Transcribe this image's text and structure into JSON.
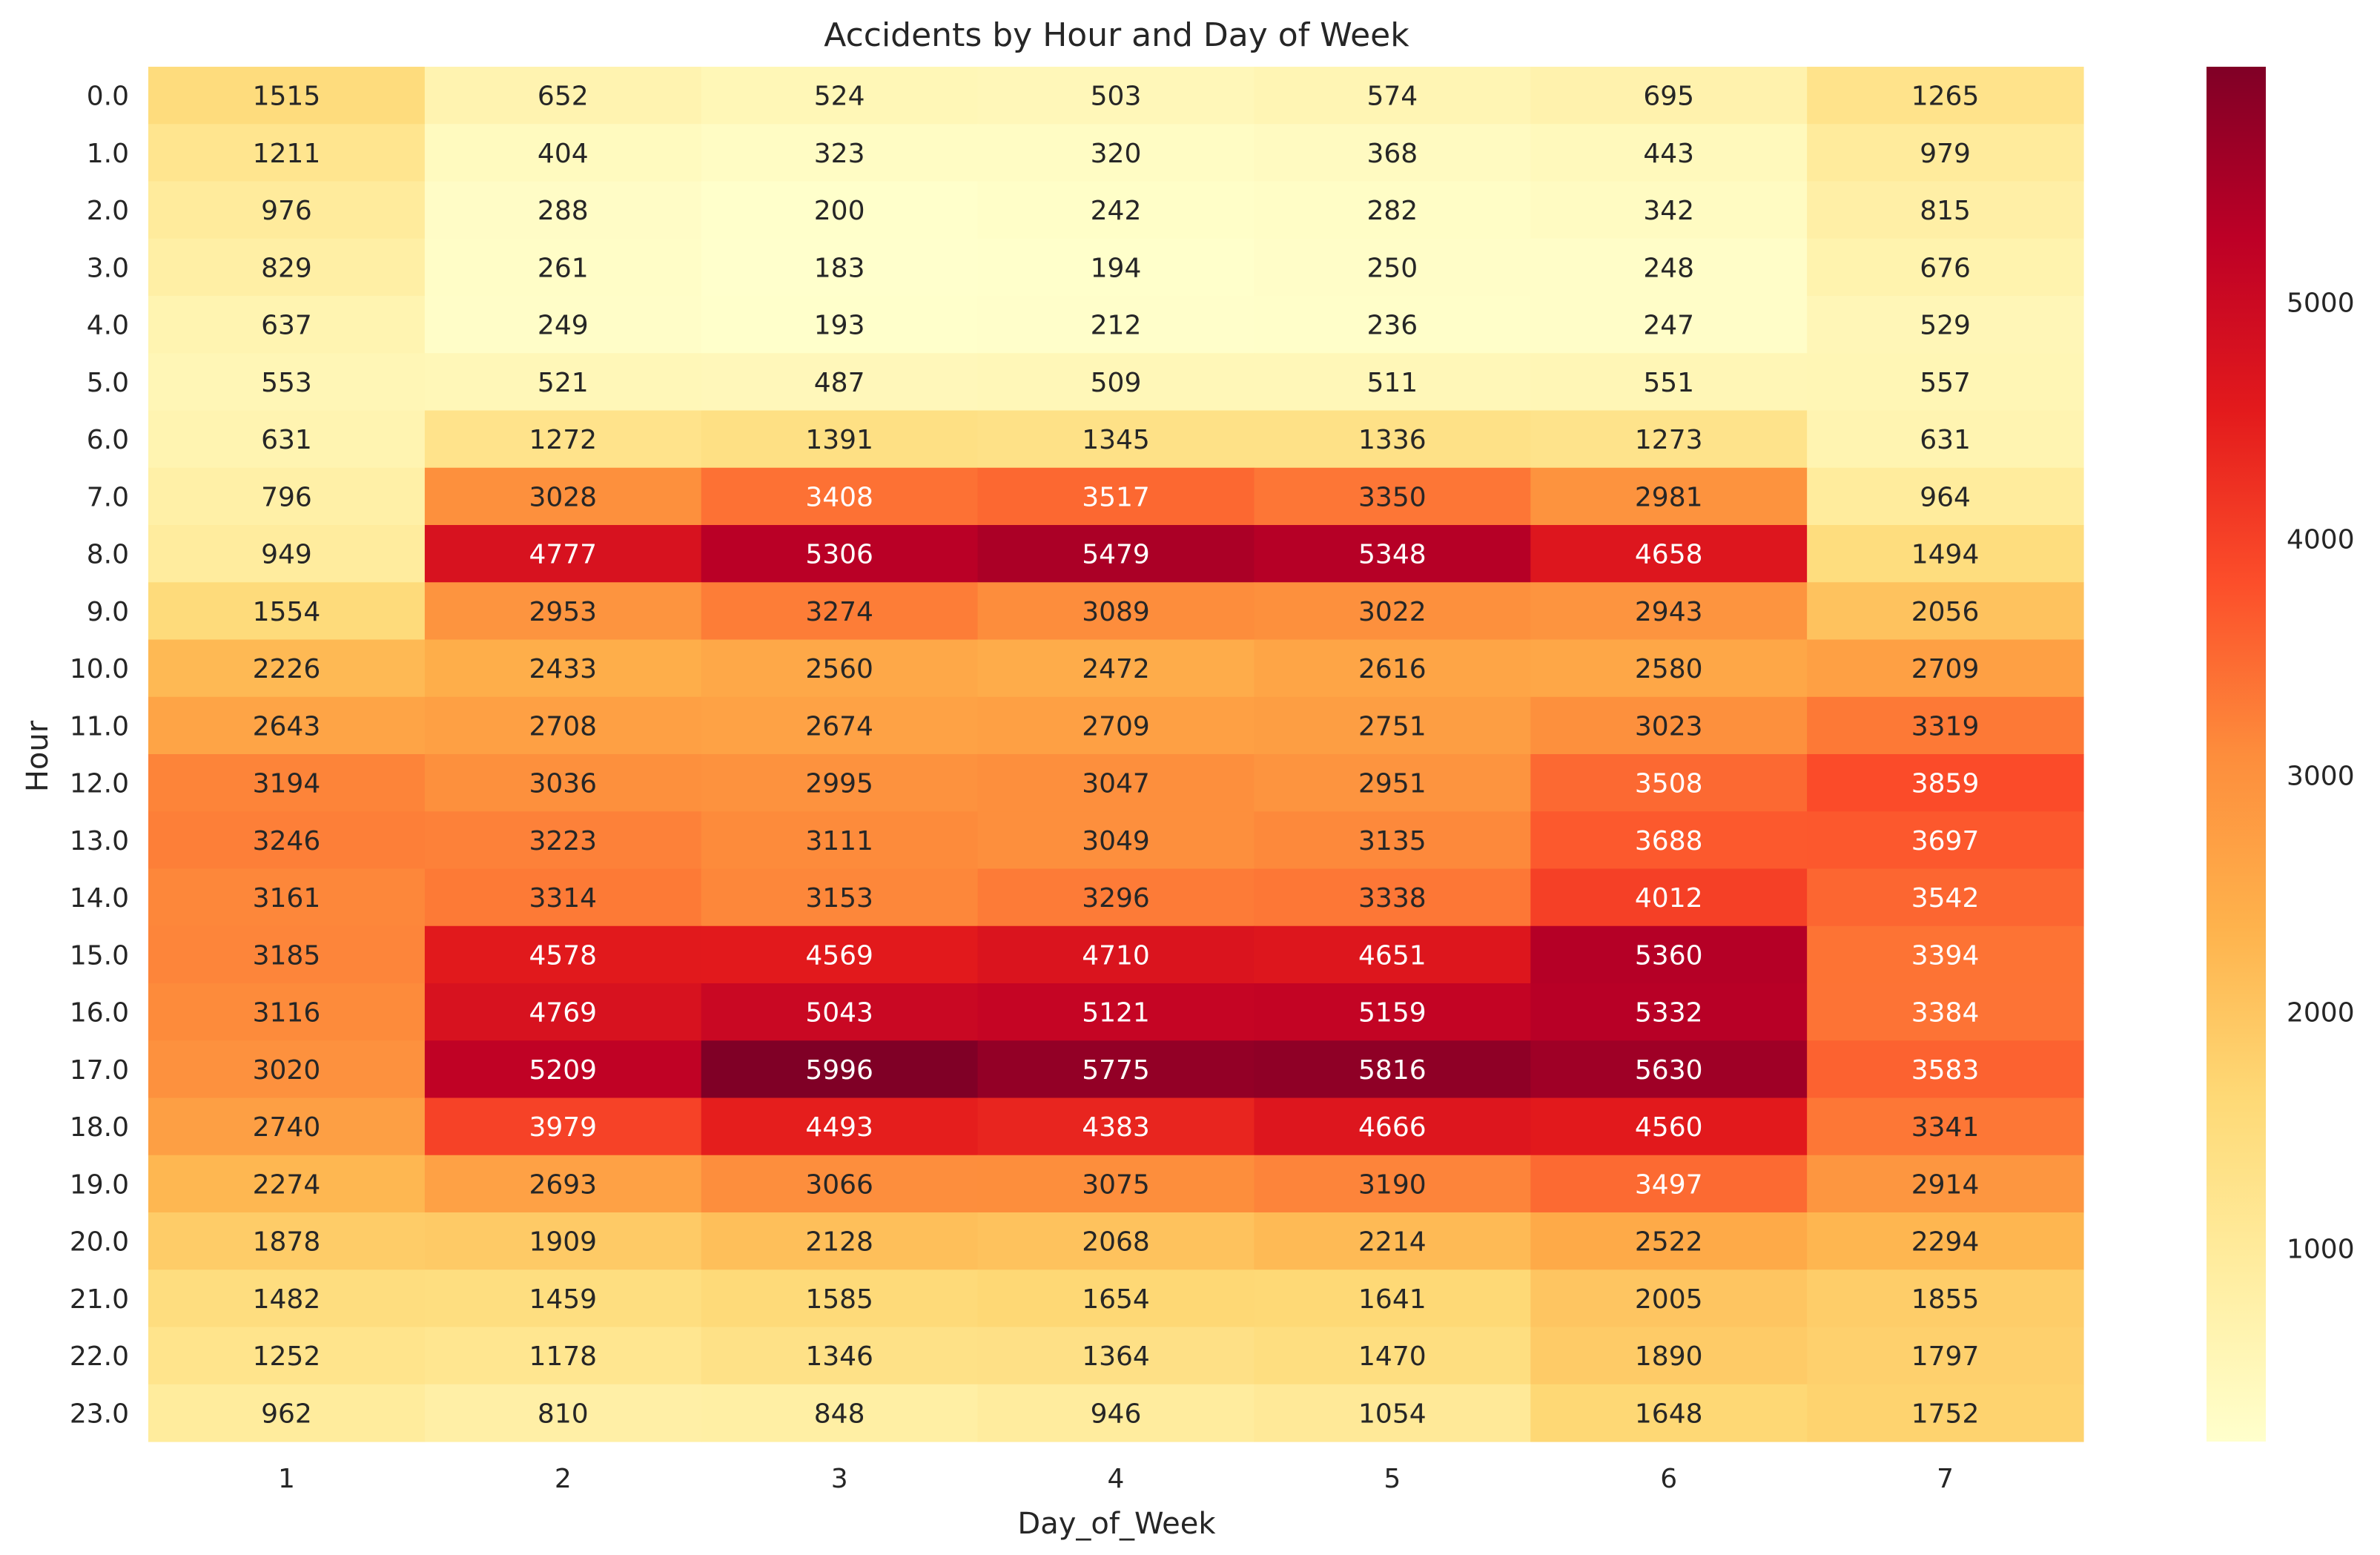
{
  "chart_data": {
    "type": "heatmap",
    "title": "Accidents by Hour and Day of Week",
    "xlabel": "Day_of_Week",
    "ylabel": "Hour",
    "x": [
      "1",
      "2",
      "3",
      "4",
      "5",
      "6",
      "7"
    ],
    "y": [
      "0.0",
      "1.0",
      "2.0",
      "3.0",
      "4.0",
      "5.0",
      "6.0",
      "7.0",
      "8.0",
      "9.0",
      "10.0",
      "11.0",
      "12.0",
      "13.0",
      "14.0",
      "15.0",
      "16.0",
      "17.0",
      "18.0",
      "19.0",
      "20.0",
      "21.0",
      "22.0",
      "23.0"
    ],
    "values": [
      [
        1515,
        652,
        524,
        503,
        574,
        695,
        1265
      ],
      [
        1211,
        404,
        323,
        320,
        368,
        443,
        979
      ],
      [
        976,
        288,
        200,
        242,
        282,
        342,
        815
      ],
      [
        829,
        261,
        183,
        194,
        250,
        248,
        676
      ],
      [
        637,
        249,
        193,
        212,
        236,
        247,
        529
      ],
      [
        553,
        521,
        487,
        509,
        511,
        551,
        557
      ],
      [
        631,
        1272,
        1391,
        1345,
        1336,
        1273,
        631
      ],
      [
        796,
        3028,
        3408,
        3517,
        3350,
        2981,
        964
      ],
      [
        949,
        4777,
        5306,
        5479,
        5348,
        4658,
        1494
      ],
      [
        1554,
        2953,
        3274,
        3089,
        3022,
        2943,
        2056
      ],
      [
        2226,
        2433,
        2560,
        2472,
        2616,
        2580,
        2709
      ],
      [
        2643,
        2708,
        2674,
        2709,
        2751,
        3023,
        3319
      ],
      [
        3194,
        3036,
        2995,
        3047,
        2951,
        3508,
        3859
      ],
      [
        3246,
        3223,
        3111,
        3049,
        3135,
        3688,
        3697
      ],
      [
        3161,
        3314,
        3153,
        3296,
        3338,
        4012,
        3542
      ],
      [
        3185,
        4578,
        4569,
        4710,
        4651,
        5360,
        3394
      ],
      [
        3116,
        4769,
        5043,
        5121,
        5159,
        5332,
        3384
      ],
      [
        3020,
        5209,
        5996,
        5775,
        5816,
        5630,
        3583
      ],
      [
        2740,
        3979,
        4493,
        4383,
        4666,
        4560,
        3341
      ],
      [
        2274,
        2693,
        3066,
        3075,
        3190,
        3497,
        2914
      ],
      [
        1878,
        1909,
        2128,
        2068,
        2214,
        2522,
        2294
      ],
      [
        1482,
        1459,
        1585,
        1654,
        1641,
        2005,
        1855
      ],
      [
        1252,
        1178,
        1346,
        1364,
        1470,
        1890,
        1797
      ],
      [
        962,
        810,
        848,
        946,
        1054,
        1648,
        1752
      ]
    ],
    "colormap": "YlOrRd",
    "colorbar": {
      "range": [
        183,
        5996
      ],
      "ticks": [
        1000,
        2000,
        3000,
        4000,
        5000
      ]
    },
    "grid": false,
    "annotations": "cell values shown"
  }
}
